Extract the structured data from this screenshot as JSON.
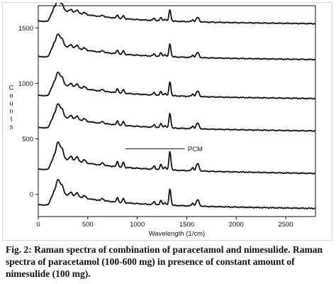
{
  "caption": {
    "label": "Fig. 2:",
    "title": "Raman spectra of combination of paracetamol and nimesulide.",
    "body": "Raman spectra of paracetamol (100-600 mg) in presence of constant amount of nimesulide (100 mg)."
  },
  "chart_data": {
    "type": "line",
    "title": "",
    "xlabel": "Wavelength (1/cm)",
    "ylabel": "Counts",
    "xlim": [
      0,
      2800
    ],
    "ylim": [
      -200,
      1700
    ],
    "x_ticks": [
      0,
      500,
      1000,
      1500,
      2000,
      2500
    ],
    "y_ticks": [
      0,
      500,
      1000,
      1500
    ],
    "grid": false,
    "legend": "none",
    "annotations": [
      {
        "text": "PCM",
        "x": 1510,
        "y": 410,
        "line_from_x": 880,
        "line_to_x": 1480
      }
    ],
    "peaks": [
      {
        "x": 200,
        "h": 120,
        "w": 25
      },
      {
        "x": 240,
        "h": 70,
        "w": 22
      },
      {
        "x": 330,
        "h": 30,
        "w": 20
      },
      {
        "x": 390,
        "h": 35,
        "w": 22
      },
      {
        "x": 465,
        "h": 22,
        "w": 20
      },
      {
        "x": 650,
        "h": 22,
        "w": 15
      },
      {
        "x": 800,
        "h": 45,
        "w": 12
      },
      {
        "x": 860,
        "h": 40,
        "w": 12
      },
      {
        "x": 1170,
        "h": 25,
        "w": 15
      },
      {
        "x": 1240,
        "h": 38,
        "w": 15
      },
      {
        "x": 1280,
        "h": 25,
        "w": 12
      },
      {
        "x": 1330,
        "h": 145,
        "w": 14
      },
      {
        "x": 1560,
        "h": 25,
        "w": 15
      },
      {
        "x": 1610,
        "h": 58,
        "w": 20
      }
    ],
    "series": [
      {
        "offset": 1560,
        "base": 1630,
        "decay": 120,
        "scale": 0.7
      },
      {
        "offset": 1240,
        "base": 1340,
        "decay": 120,
        "scale": 0.8
      },
      {
        "offset": 890,
        "base": 990,
        "decay": 120,
        "scale": 0.85
      },
      {
        "offset": 600,
        "base": 700,
        "decay": 120,
        "scale": 0.9
      },
      {
        "offset": 225,
        "base": 330,
        "decay": 120,
        "scale": 1.15
      },
      {
        "offset": -95,
        "base": 0,
        "decay": 120,
        "scale": 1.0
      }
    ]
  }
}
